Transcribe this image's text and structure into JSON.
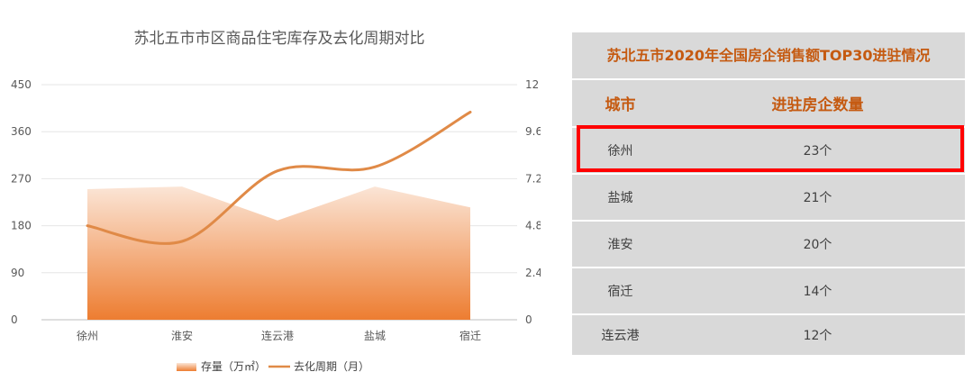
{
  "chart": {
    "title": "苏北五市市区商品住宅库存及去化周期对比",
    "legend": {
      "area_label": "存量（万㎡）",
      "line_label": "去化周期（月）"
    },
    "left_ticks": [
      "450",
      "360",
      "270",
      "180",
      "90",
      "0"
    ],
    "right_ticks": [
      "12",
      "9.6",
      "7.2",
      "4.8",
      "2.4",
      "0"
    ],
    "colors": {
      "area_top": "#fbe5d6",
      "area_bottom": "#ed7d31",
      "line": "#e08a47"
    }
  },
  "chart_data": {
    "type": "area",
    "title": "苏北五市市区商品住宅库存及去化周期对比",
    "categories": [
      "徐州",
      "淮安",
      "连云港",
      "盐城",
      "宿迁"
    ],
    "series": [
      {
        "name": "存量（万㎡）",
        "type": "area",
        "axis": "left",
        "values": [
          250,
          255,
          190,
          255,
          215
        ]
      },
      {
        "name": "去化周期（月）",
        "type": "line",
        "axis": "right",
        "values": [
          4.8,
          4.0,
          7.6,
          7.8,
          10.6
        ]
      }
    ],
    "ylim_left": [
      0,
      450
    ],
    "ylim_right": [
      0,
      12
    ],
    "grid": true,
    "legend_position": "bottom"
  },
  "table": {
    "title": "苏北五市2020年全国房企销售额TOP30进驻情况",
    "header_city": "城市",
    "header_count": "进驻房企数量",
    "rows": [
      {
        "city": "徐州",
        "count": "23个"
      },
      {
        "city": "盐城",
        "count": "21个"
      },
      {
        "city": "淮安",
        "count": "20个"
      },
      {
        "city": "宿迁",
        "count": "14个"
      },
      {
        "city": "连云港",
        "count": "12个"
      }
    ],
    "highlight_color": "#ff0000"
  }
}
